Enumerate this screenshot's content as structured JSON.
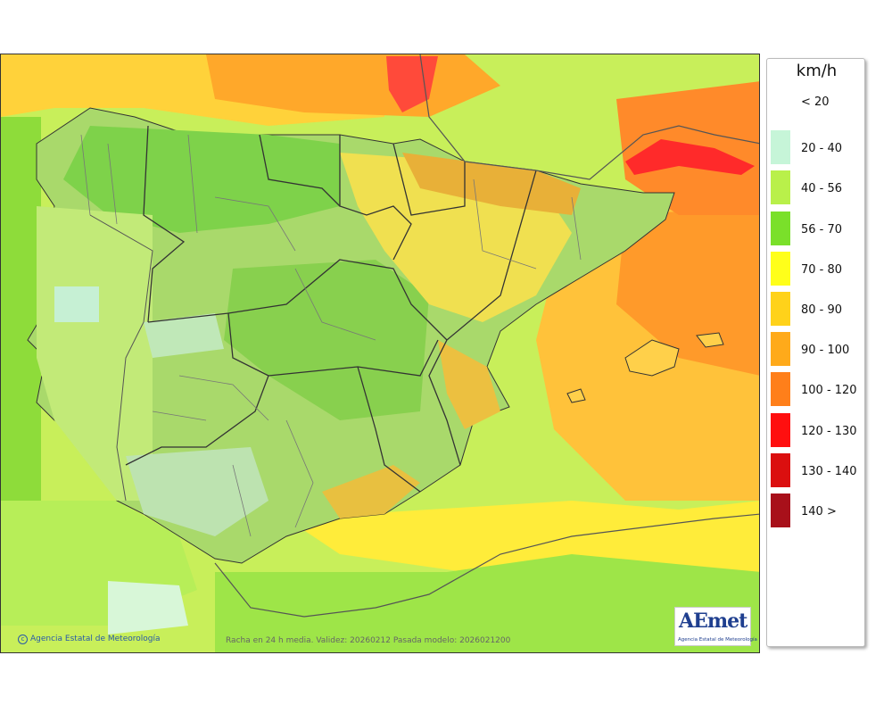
{
  "legend": {
    "unit": "km/h",
    "items": [
      {
        "label": "< 20",
        "color": "#ffffff"
      },
      {
        "label": "20 - 40",
        "color": "#c6f5d8"
      },
      {
        "label": "40 - 56",
        "color": "#b9f04a"
      },
      {
        "label": "56 - 70",
        "color": "#7ae02a"
      },
      {
        "label": "70 - 80",
        "color": "#ffff1a"
      },
      {
        "label": "80 - 90",
        "color": "#ffd21a"
      },
      {
        "label": "90 - 100",
        "color": "#ffaa1a"
      },
      {
        "label": "100 - 120",
        "color": "#ff7f1a"
      },
      {
        "label": "120 - 130",
        "color": "#ff0f0f"
      },
      {
        "label": "130 - 140",
        "color": "#db0f0f"
      },
      {
        "label": "140 >",
        "color": "#a8101a"
      }
    ]
  },
  "footer": {
    "copyright": "Agencia Estatal de Meteorología",
    "note": "Racha en 24 h media. Validez: 20260212 Pasada modelo: 2026021200"
  },
  "logo": {
    "word": "AEmet",
    "subtitle": "Agencia Estatal de Meteorología"
  }
}
